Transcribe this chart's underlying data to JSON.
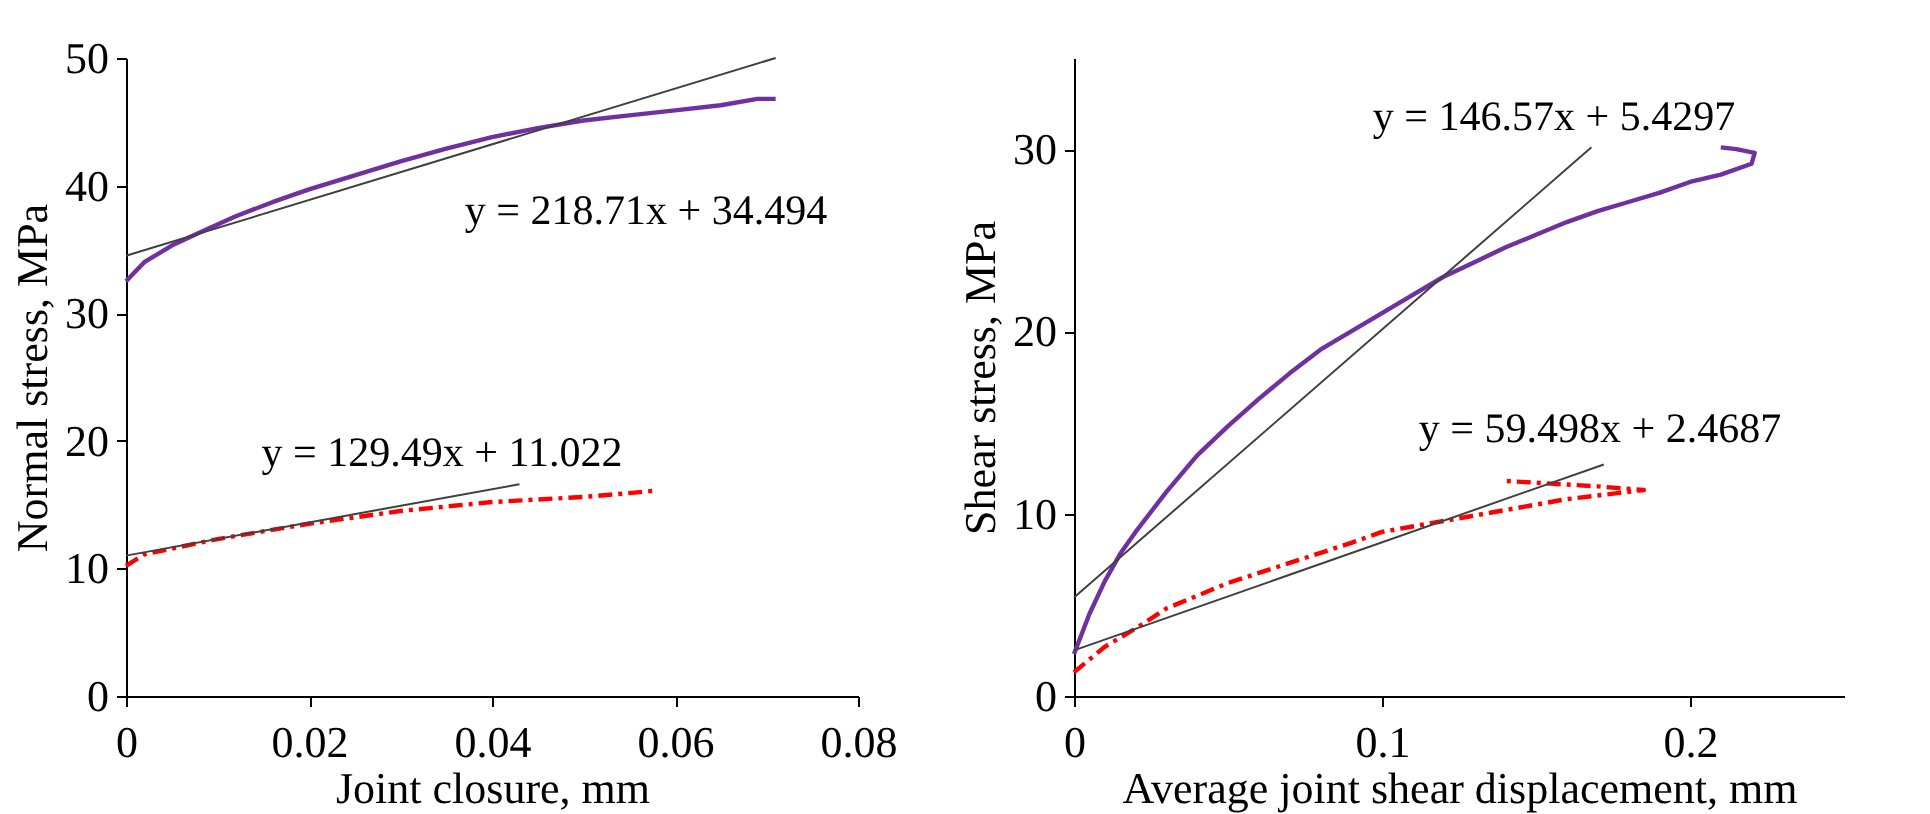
{
  "chart_data": [
    {
      "type": "line",
      "xlabel": "Joint closure, mm",
      "ylabel": "Normal stress, MPa",
      "xlim": [
        0,
        0.08
      ],
      "xticks": [
        0,
        0.02,
        0.04,
        0.06,
        0.08
      ],
      "ylim": [
        0,
        50
      ],
      "yticks": [
        0,
        10,
        20,
        30,
        40,
        50
      ],
      "grid": false,
      "legend": false,
      "marker": "none",
      "series": [
        {
          "color": "#7030a0",
          "line_style": "solid",
          "x": [
            0,
            0.002,
            0.005,
            0.008,
            0.012,
            0.016,
            0.02,
            0.025,
            0.03,
            0.035,
            0.04,
            0.045,
            0.05,
            0.055,
            0.06,
            0.065,
            0.069,
            0.071
          ],
          "values": [
            32.5,
            34,
            35.3,
            36.3,
            37.6,
            38.7,
            39.7,
            40.8,
            41.9,
            42.9,
            43.8,
            44.5,
            45.1,
            45.5,
            45.9,
            46.3,
            46.8,
            46.8
          ]
        },
        {
          "color": "#ff0000",
          "line_style": "dashed",
          "x": [
            0,
            0.002,
            0.01,
            0.02,
            0.03,
            0.04,
            0.05,
            0.055,
            0.058
          ],
          "values": [
            10.2,
            11.1,
            12.3,
            13.5,
            14.5,
            15.2,
            15.6,
            15.9,
            16.1
          ]
        },
        {
          "color": "#404040",
          "line_style": "solid",
          "x": [
            0,
            0.071
          ],
          "values": [
            34.5,
            50.0
          ]
        },
        {
          "color": "#404040",
          "line_style": "solid",
          "x": [
            0,
            0.043
          ],
          "values": [
            11.0,
            16.6
          ]
        }
      ],
      "annotations": [
        "y = 218.71x + 34.494",
        "y = 129.49x + 11.022"
      ]
    },
    {
      "type": "line",
      "xlabel": "Average joint shear displacement, mm",
      "ylabel": "Shear stress, MPa",
      "xlim": [
        0,
        0.25
      ],
      "xticks": [
        0,
        0.1,
        0.2
      ],
      "ylim": [
        0,
        35
      ],
      "yticks": [
        0,
        10,
        20,
        30
      ],
      "grid": false,
      "legend": false,
      "marker": "none",
      "series": [
        {
          "color": "#7030a0",
          "line_style": "solid",
          "x": [
            0,
            0.005,
            0.01,
            0.015,
            0.02,
            0.03,
            0.04,
            0.05,
            0.06,
            0.07,
            0.08,
            0.09,
            0.1,
            0.11,
            0.12,
            0.13,
            0.14,
            0.15,
            0.16,
            0.17,
            0.18,
            0.19,
            0.2,
            0.21,
            0.22,
            0.221,
            0.215,
            0.21
          ],
          "values": [
            2.3,
            4.5,
            6.3,
            7.8,
            9,
            11.2,
            13.2,
            14.8,
            16.3,
            17.7,
            19,
            20,
            21,
            22,
            23,
            23.8,
            24.6,
            25.3,
            26,
            26.6,
            27.1,
            27.6,
            28.2,
            28.6,
            29.2,
            29.8,
            30,
            30.1
          ]
        },
        {
          "color": "#ff0000",
          "line_style": "dashed",
          "x": [
            0,
            0.01,
            0.02,
            0.03,
            0.05,
            0.07,
            0.09,
            0.1,
            0.12,
            0.14,
            0.16,
            0.18,
            0.185,
            0.17,
            0.15,
            0.14
          ],
          "values": [
            1.3,
            2.7,
            3.7,
            4.8,
            6.2,
            7.3,
            8.4,
            9,
            9.6,
            10.2,
            10.8,
            11.2,
            11.3,
            11.5,
            11.7,
            11.8
          ]
        },
        {
          "color": "#404040",
          "line_style": "solid",
          "x": [
            0,
            0.168
          ],
          "values": [
            5.4,
            30.1
          ]
        },
        {
          "color": "#404040",
          "line_style": "solid",
          "x": [
            0,
            0.172
          ],
          "values": [
            2.5,
            12.7
          ]
        }
      ],
      "annotations": [
        "y = 146.57x + 5.4297",
        "y = 59.498x + 2.4687"
      ]
    }
  ]
}
